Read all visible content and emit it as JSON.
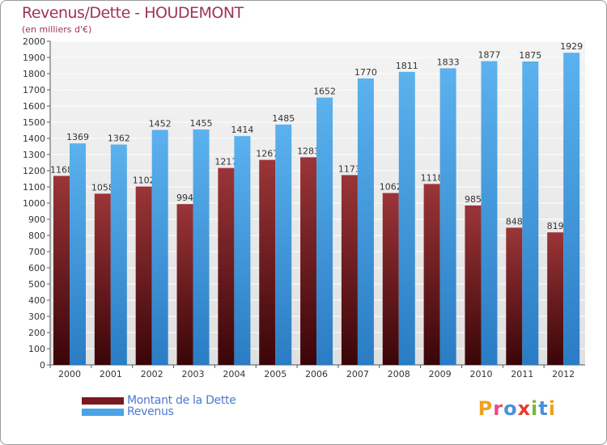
{
  "header": {
    "title": "Revenus/Dette - HOUDEMONT",
    "subtitle": "(en milliers d'€)"
  },
  "colors": {
    "debt": "#7a1a1f",
    "revenue": "#4aa3e6",
    "title": "#a0335a"
  },
  "legend": {
    "debt_label": "Montant de la Dette",
    "revenue_label": "Revenus"
  },
  "logo": {
    "text": "Proxiti",
    "letter_colors": [
      "#f0a020",
      "#e84b8a",
      "#4a90d9",
      "#e63b2e",
      "#7ab83a",
      "#4a90d9",
      "#f0a020"
    ]
  },
  "chart_data": {
    "type": "bar",
    "categories": [
      "2000",
      "2001",
      "2002",
      "2003",
      "2004",
      "2005",
      "2006",
      "2007",
      "2008",
      "2009",
      "2010",
      "2011",
      "2012"
    ],
    "series": [
      {
        "name": "Montant de la Dette",
        "values": [
          1168,
          1058,
          1102,
          994,
          1217,
          1267,
          1283,
          1173,
          1062,
          1118,
          985,
          848,
          819
        ]
      },
      {
        "name": "Revenus",
        "values": [
          1369,
          1362,
          1452,
          1455,
          1414,
          1485,
          1652,
          1770,
          1811,
          1833,
          1877,
          1875,
          1929
        ]
      }
    ],
    "ylim": [
      0,
      2000
    ],
    "ytick_step": 100,
    "grid": true
  }
}
